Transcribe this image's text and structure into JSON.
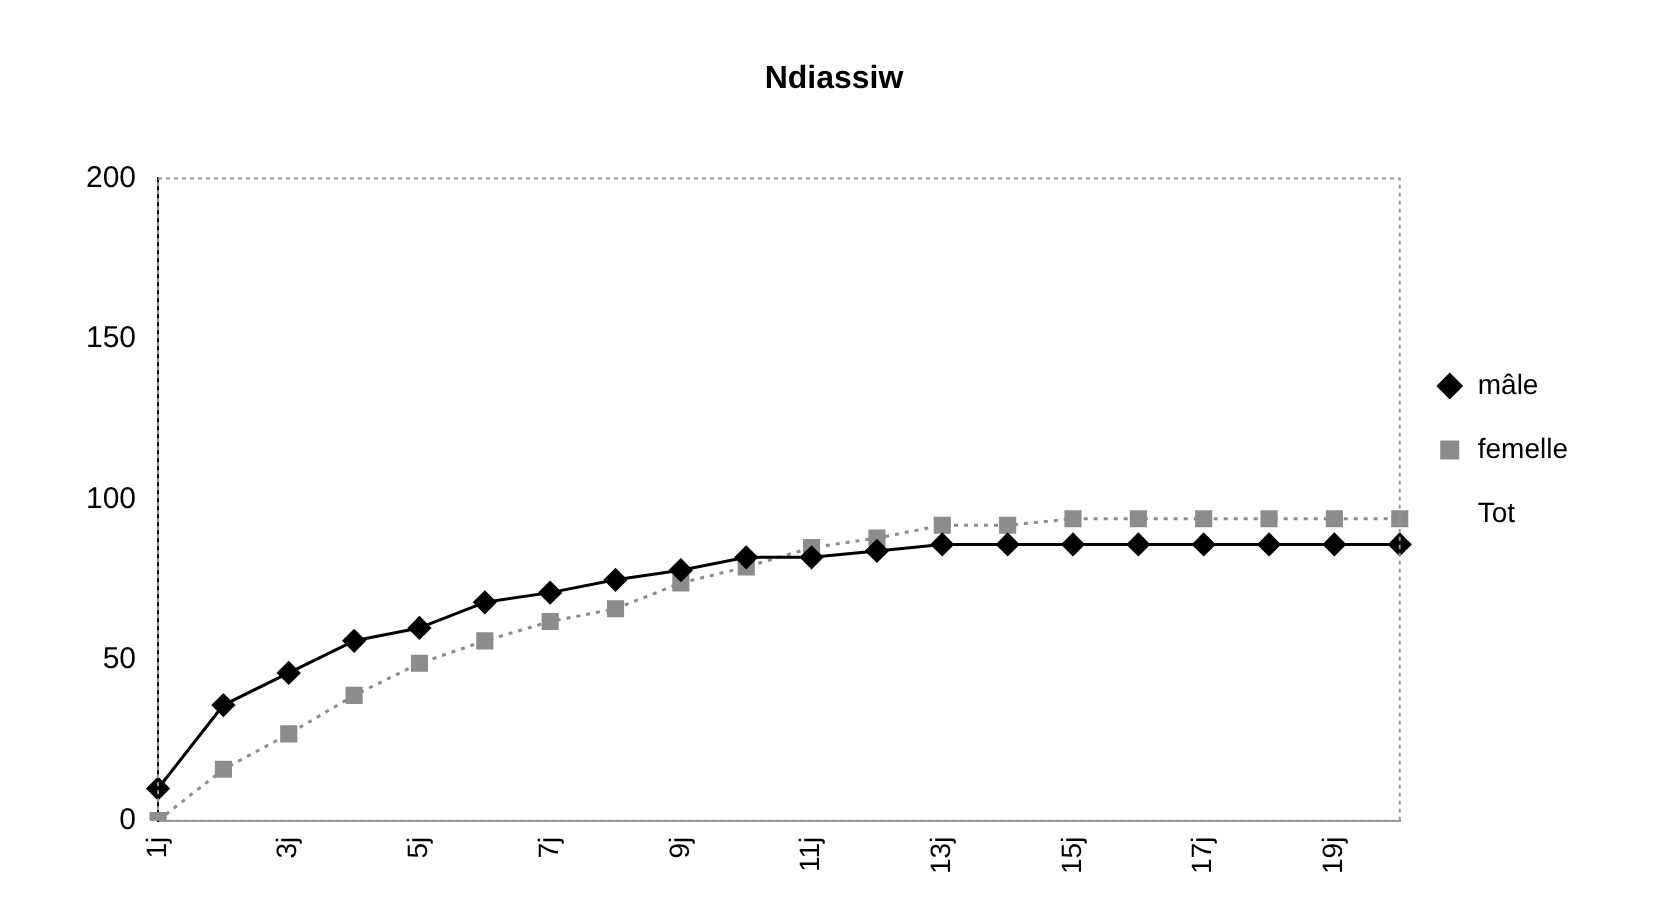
{
  "chart_data": {
    "type": "line",
    "title": "Ndiassiw",
    "categories": [
      "1j",
      null,
      "3j",
      null,
      "5j",
      null,
      "7j",
      null,
      "9j",
      null,
      "11j",
      null,
      "13j",
      null,
      "15j",
      null,
      "17j",
      null,
      "19j",
      null
    ],
    "series": [
      {
        "name": "mâle",
        "color": "#000000",
        "marker": "diamond",
        "line_style": "solid",
        "values": [
          10,
          36,
          46,
          56,
          60,
          68,
          71,
          75,
          78,
          82,
          82,
          84,
          86,
          86,
          86,
          86,
          86,
          86,
          86,
          86
        ]
      },
      {
        "name": "femelle",
        "color": "#8c8c8c",
        "marker": "square",
        "line_style": "dotted",
        "values": [
          0,
          16,
          27,
          39,
          49,
          56,
          62,
          66,
          74,
          79,
          85,
          88,
          92,
          92,
          94,
          94,
          94,
          94,
          94,
          94
        ]
      },
      {
        "name": "Tot",
        "marker": "none",
        "values": [
          null,
          null,
          null,
          null,
          null,
          null,
          null,
          null,
          null,
          null,
          null,
          null,
          null,
          null,
          null,
          null,
          null,
          null,
          null,
          null
        ]
      }
    ],
    "ylim": [
      0,
      200
    ],
    "yticks": [
      0,
      50,
      100,
      150,
      200
    ],
    "grid": false,
    "legend": "right"
  }
}
